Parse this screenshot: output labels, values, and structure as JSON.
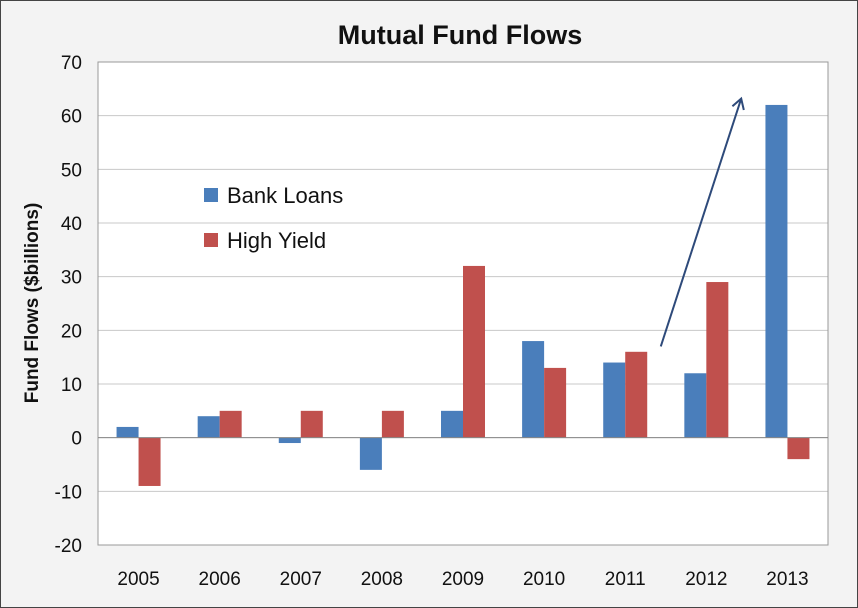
{
  "chart_data": {
    "type": "bar",
    "title": "Mutual Fund Flows",
    "xlabel": "",
    "ylabel": "Fund Flows ($billions)",
    "categories": [
      "2005",
      "2006",
      "2007",
      "2008",
      "2009",
      "2010",
      "2011",
      "2012",
      "2013"
    ],
    "series": [
      {
        "name": "Bank Loans",
        "color": "#4a7ebb",
        "values": [
          2,
          4,
          -1,
          -6,
          5,
          18,
          14,
          12,
          62
        ]
      },
      {
        "name": "High Yield",
        "color": "#c0504d",
        "values": [
          -9,
          5,
          5,
          5,
          32,
          13,
          16,
          29,
          -4
        ]
      }
    ],
    "ylim": [
      -20,
      70
    ],
    "yticks": [
      -20,
      -10,
      0,
      10,
      20,
      30,
      40,
      50,
      60,
      70
    ],
    "grid": true,
    "legend_position": "left-middle",
    "annotation": {
      "type": "arrow",
      "from": [
        "2011-2012 gap",
        17
      ],
      "to": [
        "2012-2013 gap",
        63
      ],
      "color": "#2e4a7a"
    }
  }
}
